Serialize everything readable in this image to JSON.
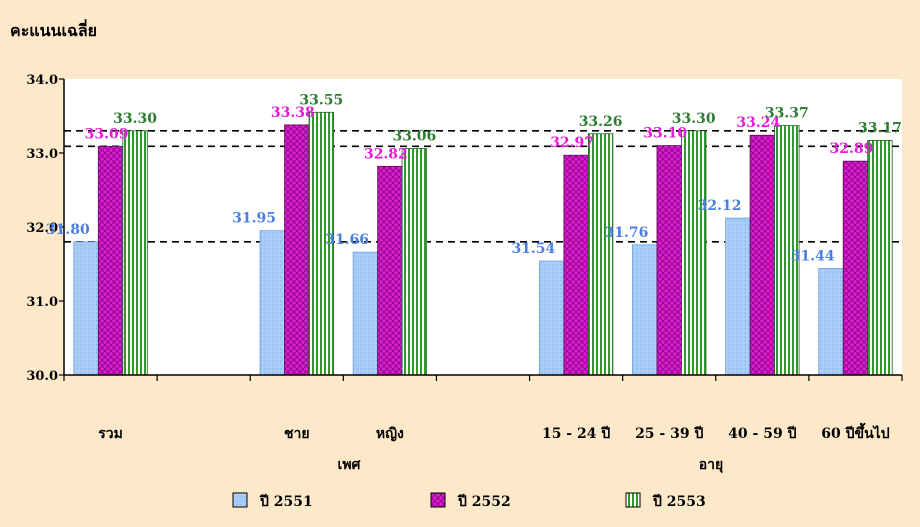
{
  "chart_data": {
    "type": "bar",
    "title": "คะแนนเฉลี่ย",
    "ylim": [
      30.0,
      34.0
    ],
    "yticks": [
      "30.0",
      "31.0",
      "32.0",
      "33.0",
      "34.0"
    ],
    "categories": [
      "รวม",
      "",
      "ชาย",
      "หญิง",
      "",
      "15 - 24 ปี",
      "25 - 39 ปี",
      "40 - 59 ปี",
      "60 ปีขึ้นไป"
    ],
    "group_labels": [
      "เพศ",
      "อายุ"
    ],
    "series": [
      {
        "name": "ปี 2551",
        "color": "#a9cdf7",
        "label_color": "#4a7fe0",
        "values": [
          31.8,
          null,
          31.95,
          31.66,
          null,
          31.54,
          31.76,
          32.12,
          31.44
        ],
        "labels": [
          "31.80",
          "",
          "31.95",
          "31.66",
          "",
          "31.54",
          "31.76",
          "32.12",
          "31.44"
        ]
      },
      {
        "name": "ปี 2552",
        "color": "#e01bd6",
        "label_color": "#e81ad8",
        "values": [
          33.09,
          null,
          33.38,
          32.82,
          null,
          32.97,
          33.1,
          33.24,
          32.89
        ],
        "labels": [
          "33.09",
          "",
          "33.38",
          "32.82",
          "",
          "32.97",
          "33.10",
          "33.24",
          "32.89"
        ]
      },
      {
        "name": "ปี 2553",
        "color": "#3fae3f",
        "label_color": "#2e7d32",
        "values": [
          33.3,
          null,
          33.55,
          33.06,
          null,
          33.26,
          33.3,
          33.37,
          33.17
        ],
        "labels": [
          "33.30",
          "",
          "33.55",
          "33.06",
          "",
          "33.26",
          "33.30",
          "33.37",
          "33.17"
        ]
      }
    ],
    "reference_lines": [
      31.8,
      33.09,
      33.3
    ],
    "grid": false,
    "legend_position": "bottom"
  }
}
